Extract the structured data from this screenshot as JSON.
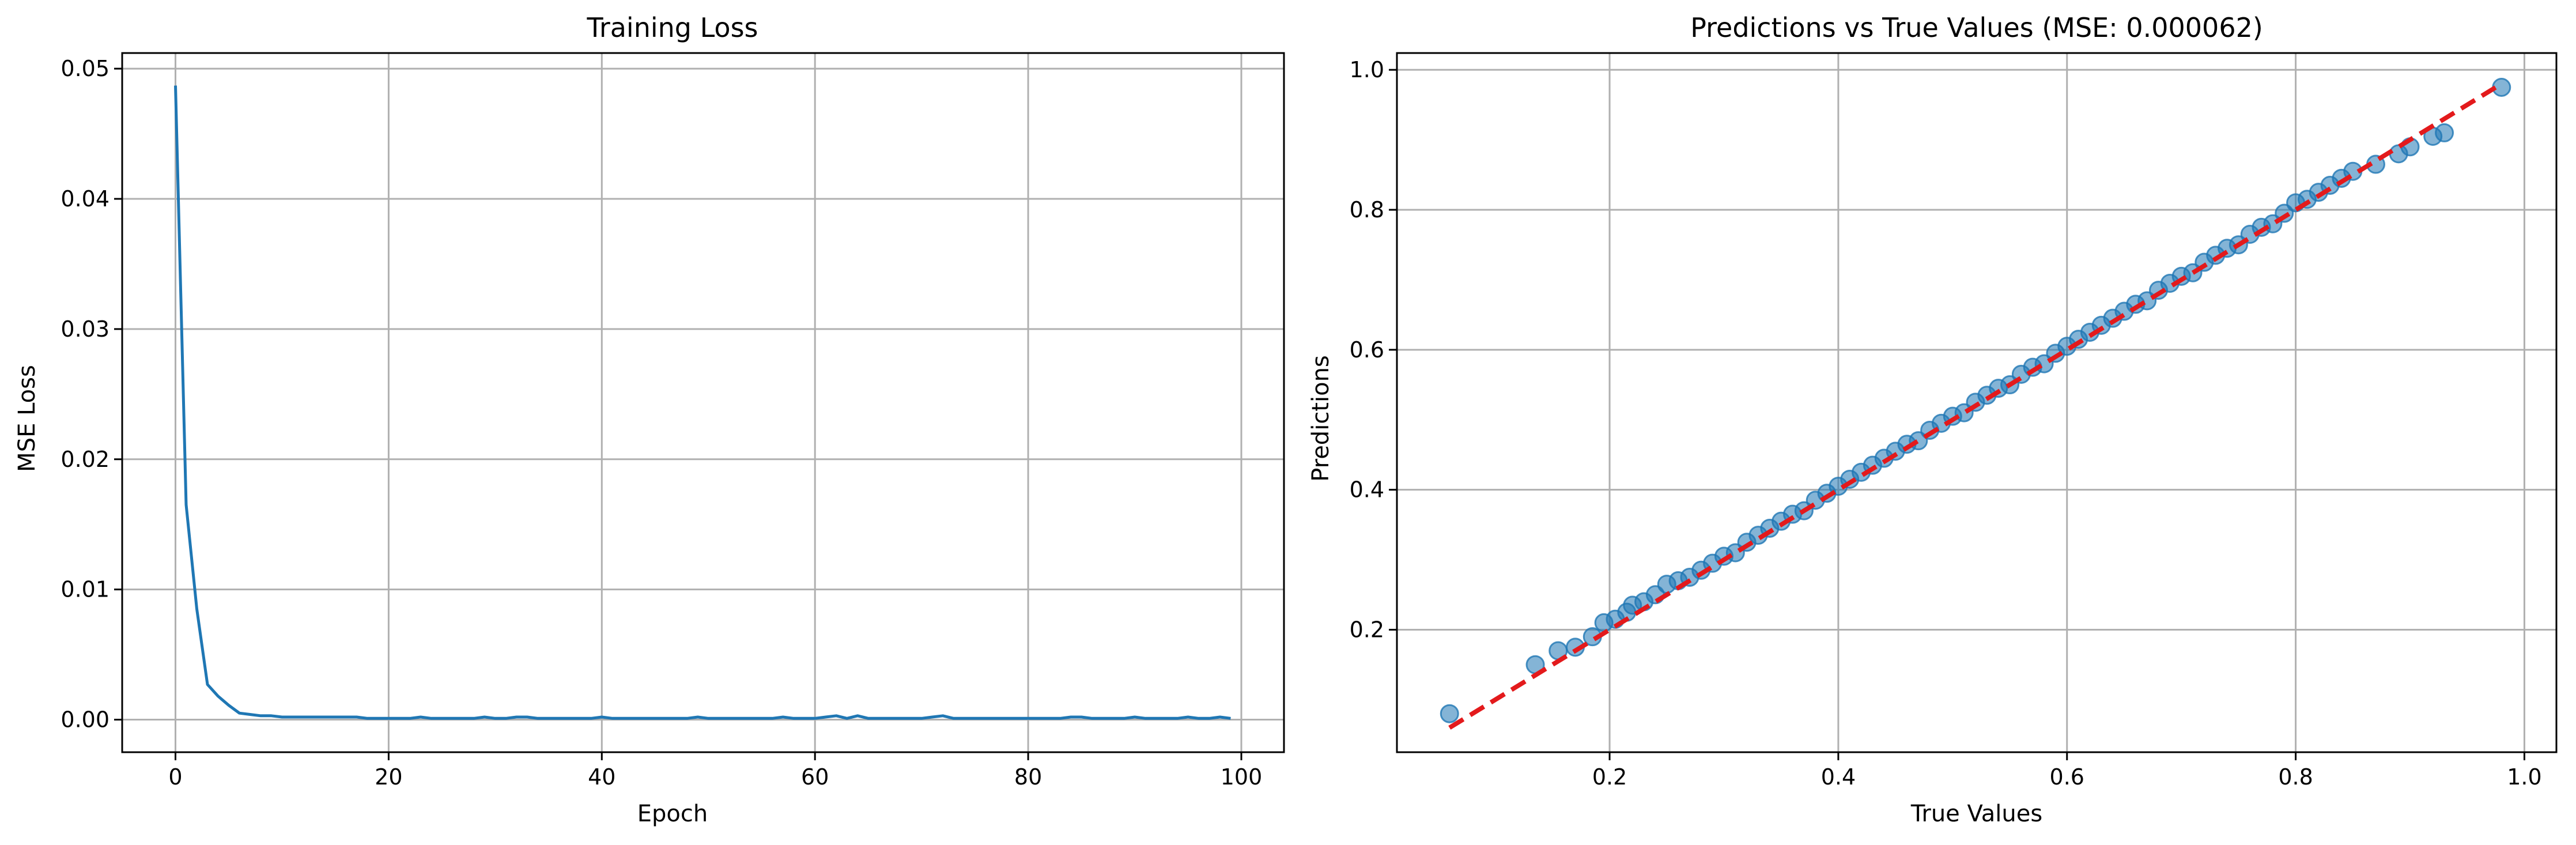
{
  "colors": {
    "series": "#1f77b4",
    "reference_line": "#e31a1c",
    "grid": "#b0b0b0"
  },
  "chart_data": [
    {
      "type": "line",
      "title": "Training Loss",
      "xlabel": "Epoch",
      "ylabel": "MSE Loss",
      "xlim": [
        -5,
        104
      ],
      "ylim": [
        -0.0025,
        0.0512
      ],
      "xticks": [
        0,
        20,
        40,
        60,
        80,
        100
      ],
      "xtick_labels": [
        "0",
        "20",
        "40",
        "60",
        "80",
        "100"
      ],
      "yticks": [
        0,
        0.01,
        0.02,
        0.03,
        0.04,
        0.05
      ],
      "ytick_labels": [
        "0.00",
        "0.01",
        "0.02",
        "0.03",
        "0.04",
        "0.05"
      ],
      "grid": true,
      "series": [
        {
          "color": "#1f77b4",
          "x": [
            0,
            1,
            2,
            3,
            4,
            5,
            6,
            7,
            8,
            9,
            10,
            11,
            12,
            13,
            14,
            15,
            16,
            17,
            18,
            19,
            20,
            21,
            22,
            23,
            24,
            25,
            26,
            27,
            28,
            29,
            30,
            31,
            32,
            33,
            34,
            35,
            36,
            37,
            38,
            39,
            40,
            41,
            42,
            43,
            44,
            45,
            46,
            47,
            48,
            49,
            50,
            51,
            52,
            53,
            54,
            55,
            56,
            57,
            58,
            59,
            60,
            61,
            62,
            63,
            64,
            65,
            66,
            67,
            68,
            69,
            70,
            71,
            72,
            73,
            74,
            75,
            76,
            77,
            78,
            79,
            80,
            81,
            82,
            83,
            84,
            85,
            86,
            87,
            88,
            89,
            90,
            91,
            92,
            93,
            94,
            95,
            96,
            97,
            98,
            99
          ],
          "y": [
            0.0487,
            0.0165,
            0.0085,
            0.0027,
            0.0018,
            0.0011,
            0.0005,
            0.0004,
            0.0003,
            0.0003,
            0.0002,
            0.0002,
            0.0002,
            0.0002,
            0.0002,
            0.0002,
            0.0002,
            0.0002,
            0.0001,
            0.0001,
            0.0001,
            0.0001,
            0.0001,
            0.0002,
            0.0001,
            0.0001,
            0.0001,
            0.0001,
            0.0001,
            0.0002,
            0.0001,
            0.0001,
            0.0002,
            0.0002,
            0.0001,
            0.0001,
            0.0001,
            0.0001,
            0.0001,
            0.0001,
            0.0002,
            0.0001,
            0.0001,
            0.0001,
            0.0001,
            0.0001,
            0.0001,
            0.0001,
            0.0001,
            0.0002,
            0.0001,
            0.0001,
            0.0001,
            0.0001,
            0.0001,
            0.0001,
            0.0001,
            0.0002,
            0.0001,
            0.0001,
            0.0001,
            0.0002,
            0.0003,
            0.0001,
            0.0003,
            0.0001,
            0.0001,
            0.0001,
            0.0001,
            0.0001,
            0.0001,
            0.0002,
            0.0003,
            0.0001,
            0.0001,
            0.0001,
            0.0001,
            0.0001,
            0.0001,
            0.0001,
            0.0001,
            0.0001,
            0.0001,
            0.0001,
            0.0002,
            0.0002,
            0.0001,
            0.0001,
            0.0001,
            0.0001,
            0.0002,
            0.0001,
            0.0001,
            0.0001,
            0.0001,
            0.0002,
            0.0001,
            0.0001,
            0.0002,
            0.0001
          ]
        }
      ]
    },
    {
      "type": "scatter",
      "title": "Predictions vs True Values (MSE: 0.000062)",
      "xlabel": "True Values",
      "ylabel": "Predictions",
      "xlim": [
        0.014,
        1.028
      ],
      "ylim": [
        0.025,
        1.024
      ],
      "xticks": [
        0.2,
        0.4,
        0.6,
        0.8,
        1.0
      ],
      "xtick_labels": [
        "0.2",
        "0.4",
        "0.6",
        "0.8",
        "1.0"
      ],
      "yticks": [
        0.2,
        0.4,
        0.6,
        0.8,
        1.0
      ],
      "ytick_labels": [
        "0.2",
        "0.4",
        "0.6",
        "0.8",
        "1.0"
      ],
      "grid": true,
      "reference_line": {
        "x": [
          0.06,
          0.98
        ],
        "y": [
          0.06,
          0.98
        ],
        "color": "#e31a1c",
        "style": "dashed"
      },
      "series": [
        {
          "color": "#1f77b4",
          "opacity": 0.55,
          "x": [
            0.06,
            0.135,
            0.155,
            0.17,
            0.185,
            0.195,
            0.205,
            0.215,
            0.22,
            0.23,
            0.24,
            0.25,
            0.26,
            0.27,
            0.28,
            0.29,
            0.3,
            0.31,
            0.32,
            0.33,
            0.34,
            0.35,
            0.36,
            0.37,
            0.38,
            0.39,
            0.4,
            0.41,
            0.42,
            0.43,
            0.44,
            0.45,
            0.46,
            0.47,
            0.48,
            0.49,
            0.5,
            0.51,
            0.52,
            0.53,
            0.54,
            0.55,
            0.56,
            0.57,
            0.58,
            0.59,
            0.6,
            0.61,
            0.62,
            0.63,
            0.64,
            0.65,
            0.66,
            0.67,
            0.68,
            0.69,
            0.7,
            0.71,
            0.72,
            0.73,
            0.74,
            0.75,
            0.76,
            0.77,
            0.78,
            0.79,
            0.8,
            0.81,
            0.82,
            0.83,
            0.84,
            0.85,
            0.87,
            0.89,
            0.9,
            0.92,
            0.93,
            0.98
          ],
          "y": [
            0.08,
            0.15,
            0.17,
            0.175,
            0.19,
            0.21,
            0.215,
            0.225,
            0.235,
            0.24,
            0.25,
            0.265,
            0.27,
            0.275,
            0.285,
            0.295,
            0.305,
            0.31,
            0.325,
            0.335,
            0.345,
            0.355,
            0.365,
            0.37,
            0.385,
            0.395,
            0.405,
            0.415,
            0.425,
            0.435,
            0.445,
            0.455,
            0.465,
            0.47,
            0.485,
            0.495,
            0.505,
            0.51,
            0.525,
            0.535,
            0.545,
            0.55,
            0.565,
            0.575,
            0.58,
            0.595,
            0.605,
            0.615,
            0.625,
            0.635,
            0.645,
            0.655,
            0.665,
            0.67,
            0.685,
            0.695,
            0.705,
            0.71,
            0.725,
            0.735,
            0.745,
            0.75,
            0.765,
            0.775,
            0.78,
            0.795,
            0.81,
            0.815,
            0.825,
            0.835,
            0.845,
            0.855,
            0.865,
            0.88,
            0.89,
            0.905,
            0.91,
            0.975
          ]
        }
      ]
    }
  ]
}
